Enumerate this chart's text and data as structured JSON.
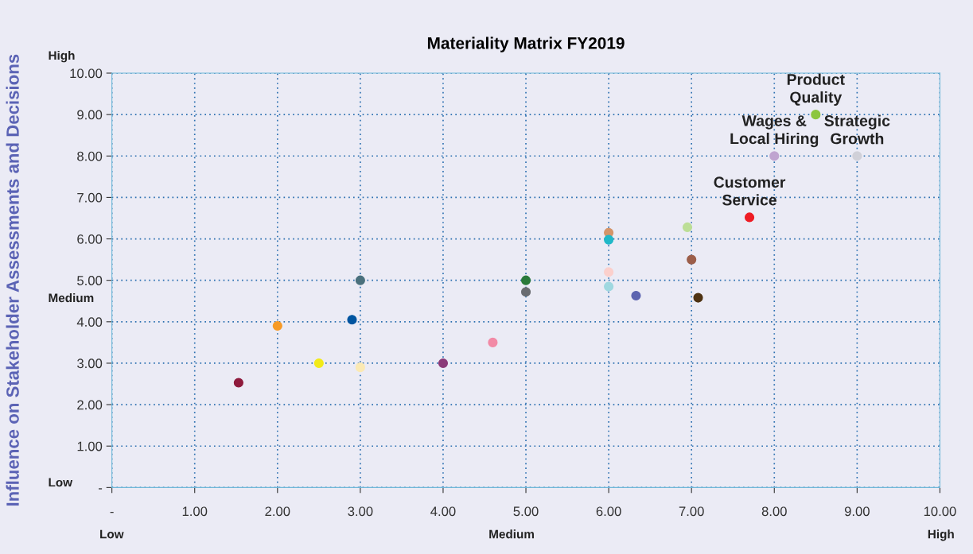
{
  "chart_data": {
    "type": "scatter",
    "title": "Materiality Matrix FY2019",
    "ylabel": "Influence on Stakeholder Assessments and Decisions",
    "x": [
      1.53,
      2.0,
      2.5,
      2.9,
      3.0,
      3.0,
      4.0,
      4.6,
      5.0,
      5.0,
      6.0,
      6.0,
      6.0,
      6.0,
      6.33,
      6.95,
      7.0,
      7.08,
      7.7,
      8.0,
      8.5,
      9.0
    ],
    "values": [
      2.53,
      3.9,
      3.0,
      4.05,
      5.0,
      2.9,
      3.0,
      3.5,
      5.0,
      4.72,
      6.15,
      5.98,
      5.2,
      4.85,
      4.63,
      6.28,
      5.5,
      4.58,
      6.52,
      8.0,
      9.0,
      8.0
    ],
    "colors": [
      "#8e1a3c",
      "#f79a24",
      "#f2ea18",
      "#0055a0",
      "#4a707c",
      "#fbe9b3",
      "#8b3a78",
      "#f28aa6",
      "#2a7a3a",
      "#6a6c70",
      "#d4956a",
      "#20b8c8",
      "#fbd0cc",
      "#9fd8e0",
      "#5c64b0",
      "#bcde96",
      "#9c5e4a",
      "#4e3212",
      "#ee1c24",
      "#c0a4d0",
      "#8cc63e",
      "#d0d0d8"
    ],
    "marker": "circle",
    "xlim": [
      0,
      10
    ],
    "ylim": [
      0,
      10
    ],
    "xticks": [
      {
        "value": 0,
        "label": "-"
      },
      {
        "value": 1,
        "label": "1.00"
      },
      {
        "value": 2,
        "label": "2.00"
      },
      {
        "value": 3,
        "label": "3.00"
      },
      {
        "value": 4,
        "label": "4.00"
      },
      {
        "value": 5,
        "label": "5.00"
      },
      {
        "value": 6,
        "label": "6.00"
      },
      {
        "value": 7,
        "label": "7.00"
      },
      {
        "value": 8,
        "label": "8.00"
      },
      {
        "value": 9,
        "label": "9.00"
      },
      {
        "value": 10,
        "label": "10.00"
      }
    ],
    "yticks": [
      {
        "value": 0,
        "label": "-"
      },
      {
        "value": 1,
        "label": "1.00"
      },
      {
        "value": 2,
        "label": "2.00"
      },
      {
        "value": 3,
        "label": "3.00"
      },
      {
        "value": 4,
        "label": "4.00"
      },
      {
        "value": 5,
        "label": "5.00"
      },
      {
        "value": 6,
        "label": "6.00"
      },
      {
        "value": 7,
        "label": "7.00"
      },
      {
        "value": 8,
        "label": "8.00"
      },
      {
        "value": 9,
        "label": "9.00"
      },
      {
        "value": 10,
        "label": "10.00"
      }
    ],
    "grid": true,
    "annotations": [
      {
        "text": "Product\nQuality",
        "x": 8.5,
        "y": 9.0
      },
      {
        "text": "Wages &\nLocal Hiring",
        "x": 8.0,
        "y": 8.0
      },
      {
        "text": "Strategic\nGrowth",
        "x": 9.0,
        "y": 8.0
      },
      {
        "text": "Customer\nService",
        "x": 7.7,
        "y": 6.52
      },
      "High",
      "Medium",
      "Low",
      "Low",
      "Medium",
      "High"
    ]
  }
}
